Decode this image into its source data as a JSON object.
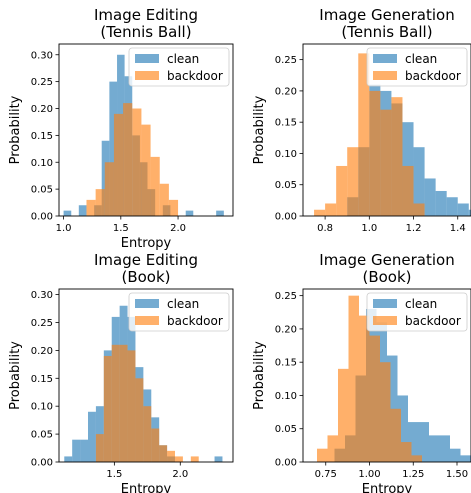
{
  "colors": {
    "clean": "#1f77b4",
    "backdoor": "#ff7f0e"
  },
  "chart_data": [
    {
      "type": "bar",
      "title": "Image Editing\n(Tennis Ball)",
      "xlabel": "Entropy",
      "ylabel": "Probability",
      "xlim": [
        0.96,
        2.48
      ],
      "ylim": [
        0,
        0.32
      ],
      "xticks": [
        1.0,
        1.5,
        2.0
      ],
      "xtick_labels": [
        "1.0",
        "1.5",
        "2.0"
      ],
      "yticks": [
        0,
        0.05,
        0.1,
        0.15,
        0.2,
        0.25,
        0.3
      ],
      "ytick_labels": [
        "0.00",
        "0.05",
        "0.10",
        "0.15",
        "0.20",
        "0.25",
        "0.30"
      ],
      "legend": "top-right",
      "series": [
        {
          "name": "clean",
          "bins": [
            1.0,
            1.067,
            1.133,
            1.2,
            1.267,
            1.333,
            1.4,
            1.467,
            1.533,
            1.6,
            1.667,
            1.733,
            1.8,
            1.867,
            1.933,
            2.0,
            2.067,
            2.133,
            2.2,
            2.267,
            2.333,
            2.4
          ],
          "values": [
            0.01,
            0.0,
            0.02,
            0.0,
            0.02,
            0.14,
            0.25,
            0.3,
            0.26,
            0.15,
            0.1,
            0.05,
            0.0,
            0.02,
            0.0,
            0.0,
            0.01,
            0.0,
            0.0,
            0.0,
            0.01
          ]
        },
        {
          "name": "backdoor",
          "bins": [
            1.2,
            1.28,
            1.36,
            1.44,
            1.52,
            1.6,
            1.68,
            1.76,
            1.84,
            1.92,
            2.0
          ],
          "values": [
            0.03,
            0.05,
            0.1,
            0.19,
            0.21,
            0.2,
            0.17,
            0.11,
            0.06,
            0.03,
            0.01
          ]
        }
      ]
    },
    {
      "type": "bar",
      "title": "Image Generation\n(Tennis Ball)",
      "xlabel": "",
      "ylabel": "Probability",
      "xlim": [
        0.7,
        1.46
      ],
      "ylim": [
        0,
        0.275
      ],
      "xticks": [
        0.8,
        1.0,
        1.2,
        1.4
      ],
      "xtick_labels": [
        "0.8",
        "1.0",
        "1.2",
        "1.4"
      ],
      "yticks": [
        0,
        0.05,
        0.1,
        0.15,
        0.2,
        0.25
      ],
      "ytick_labels": [
        "0.00",
        "0.05",
        "0.10",
        "0.15",
        "0.20",
        "0.25"
      ],
      "legend": "top-right",
      "series": [
        {
          "name": "clean",
          "bins": [
            0.9,
            0.95,
            1.0,
            1.05,
            1.1,
            1.15,
            1.2,
            1.25,
            1.3,
            1.35,
            1.4,
            1.45,
            1.5
          ],
          "values": [
            0.03,
            0.11,
            0.21,
            0.2,
            0.18,
            0.15,
            0.11,
            0.06,
            0.04,
            0.03,
            0.02,
            0.01
          ]
        },
        {
          "name": "backdoor",
          "bins": [
            0.75,
            0.8,
            0.85,
            0.9,
            0.95,
            1.0,
            1.05,
            1.1,
            1.15,
            1.2,
            1.25
          ],
          "values": [
            0.01,
            0.02,
            0.08,
            0.11,
            0.26,
            0.2,
            0.17,
            0.19,
            0.08,
            0.02
          ]
        }
      ]
    },
    {
      "type": "bar",
      "title": "Image Editing\n(Book)",
      "xlabel": "Entropy",
      "ylabel": "Probability",
      "xlim": [
        1.08,
        2.4
      ],
      "ylim": [
        0,
        0.31
      ],
      "xticks": [
        1.5,
        2.0
      ],
      "xtick_labels": [
        "1.5",
        "2.0"
      ],
      "yticks": [
        0,
        0.05,
        0.1,
        0.15,
        0.2,
        0.25,
        0.3
      ],
      "ytick_labels": [
        "0.00",
        "0.05",
        "0.10",
        "0.15",
        "0.20",
        "0.25",
        "0.30"
      ],
      "legend": "top-right",
      "series": [
        {
          "name": "clean",
          "bins": [
            1.12,
            1.18,
            1.24,
            1.3,
            1.36,
            1.42,
            1.48,
            1.54,
            1.6,
            1.66,
            1.72,
            1.78,
            1.84,
            1.9,
            1.96,
            2.02,
            2.08,
            2.14,
            2.2,
            2.26,
            2.32
          ],
          "values": [
            0.01,
            0.04,
            0.04,
            0.09,
            0.1,
            0.2,
            0.26,
            0.28,
            0.26,
            0.17,
            0.13,
            0.08,
            0.03,
            0.01,
            0.0,
            0.0,
            0.0,
            0.0,
            0.0,
            0.01
          ]
        },
        {
          "name": "backdoor",
          "bins": [
            1.36,
            1.42,
            1.48,
            1.54,
            1.6,
            1.66,
            1.72,
            1.78,
            1.84,
            1.9,
            1.96,
            2.02,
            2.08,
            2.14
          ],
          "values": [
            0.05,
            0.19,
            0.21,
            0.21,
            0.2,
            0.15,
            0.1,
            0.06,
            0.03,
            0.02,
            0.01,
            0.0,
            0.01
          ]
        }
      ]
    },
    {
      "type": "bar",
      "title": "Image Generation\n(Book)",
      "xlabel": "Entropy",
      "ylabel": "Probability",
      "xlim": [
        0.62,
        1.58
      ],
      "ylim": [
        0,
        0.26
      ],
      "xticks": [
        0.75,
        1.0,
        1.25,
        1.5
      ],
      "xtick_labels": [
        "0.75",
        "1.00",
        "1.25",
        "1.50"
      ],
      "yticks": [
        0,
        0.05,
        0.1,
        0.15,
        0.2,
        0.25
      ],
      "ytick_labels": [
        "0.00",
        "0.05",
        "0.10",
        "0.15",
        "0.20",
        "0.25"
      ],
      "legend": "top-right",
      "series": [
        {
          "name": "clean",
          "bins": [
            0.8,
            0.86,
            0.92,
            0.98,
            1.04,
            1.1,
            1.16,
            1.22,
            1.28,
            1.34,
            1.4,
            1.46,
            1.52,
            1.58
          ],
          "values": [
            0.02,
            0.04,
            0.13,
            0.23,
            0.21,
            0.16,
            0.1,
            0.06,
            0.06,
            0.04,
            0.04,
            0.02,
            0.01
          ]
        },
        {
          "name": "backdoor",
          "bins": [
            0.7,
            0.76,
            0.82,
            0.88,
            0.94,
            1.0,
            1.06,
            1.12,
            1.18,
            1.24,
            1.3
          ],
          "values": [
            0.02,
            0.04,
            0.14,
            0.25,
            0.22,
            0.19,
            0.15,
            0.08,
            0.03,
            0.01
          ]
        }
      ]
    }
  ]
}
